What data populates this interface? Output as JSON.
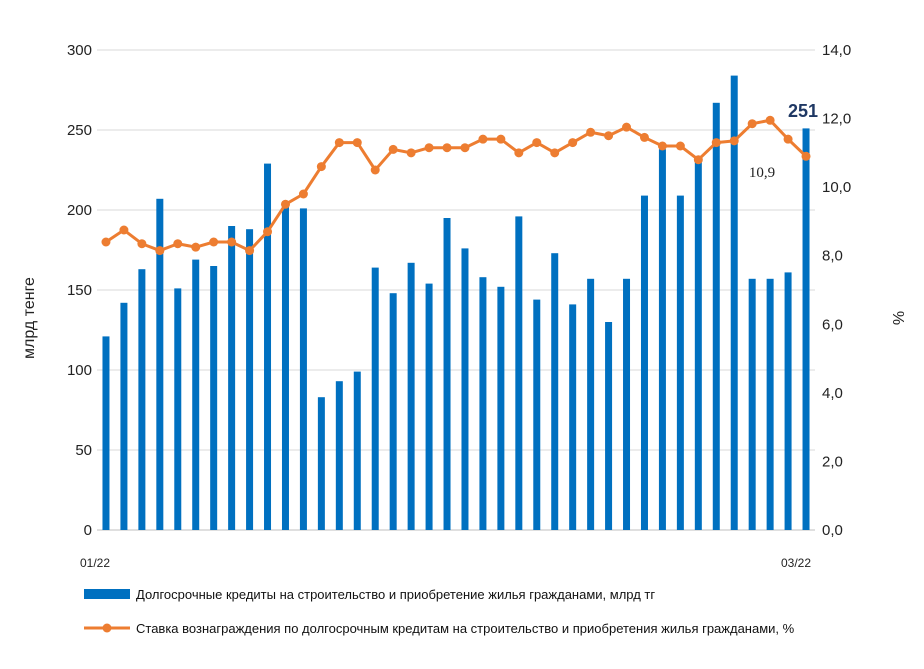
{
  "chart_data": {
    "type": "bar",
    "x_start_label": "01/22",
    "x_end_label": "03/22",
    "ylabel_left": "млрд тенге",
    "ylabel_right": "%",
    "ylim_left": [
      0,
      300
    ],
    "ylim_right": [
      0,
      14
    ],
    "yticks_left": [
      "0",
      "50",
      "100",
      "150",
      "200",
      "250",
      "300"
    ],
    "yticks_right": [
      "0,0",
      "2,0",
      "4,0",
      "6,0",
      "8,0",
      "10,0",
      "12,0",
      "14,0"
    ],
    "grid": "horizontal",
    "legend_position": "bottom",
    "series": [
      {
        "name": "Долгосрочные кредиты на строительство и приобретение жилья гражданами, млрд тг",
        "type": "bar",
        "axis": "left",
        "color": "#0070C0",
        "values": [
          121,
          142,
          163,
          207,
          151,
          169,
          165,
          190,
          188,
          229,
          203,
          201,
          83,
          93,
          99,
          164,
          148,
          167,
          154,
          195,
          176,
          158,
          152,
          196,
          144,
          173,
          141,
          157,
          130,
          157,
          209,
          238,
          209,
          231,
          267,
          284,
          157,
          157,
          161,
          251
        ]
      },
      {
        "name": "Ставка вознаграждения по долгосрочным кредитам на строительство и приобретения жилья гражданами, %",
        "type": "line",
        "axis": "right",
        "color": "#ED7D31",
        "values": [
          8.4,
          8.75,
          8.35,
          8.15,
          8.35,
          8.25,
          8.4,
          8.4,
          8.15,
          8.7,
          9.5,
          9.8,
          10.6,
          11.3,
          11.3,
          10.5,
          11.1,
          11.0,
          11.15,
          11.15,
          11.15,
          11.4,
          11.4,
          11.0,
          11.3,
          11.0,
          11.3,
          11.6,
          11.5,
          11.75,
          11.45,
          11.2,
          11.2,
          10.8,
          11.3,
          11.35,
          11.85,
          11.95,
          11.4,
          10.9
        ]
      }
    ],
    "annotations": [
      {
        "text": "251",
        "series": 0,
        "point": 39
      },
      {
        "text": "10,9",
        "series": 1,
        "point": 39
      }
    ]
  }
}
